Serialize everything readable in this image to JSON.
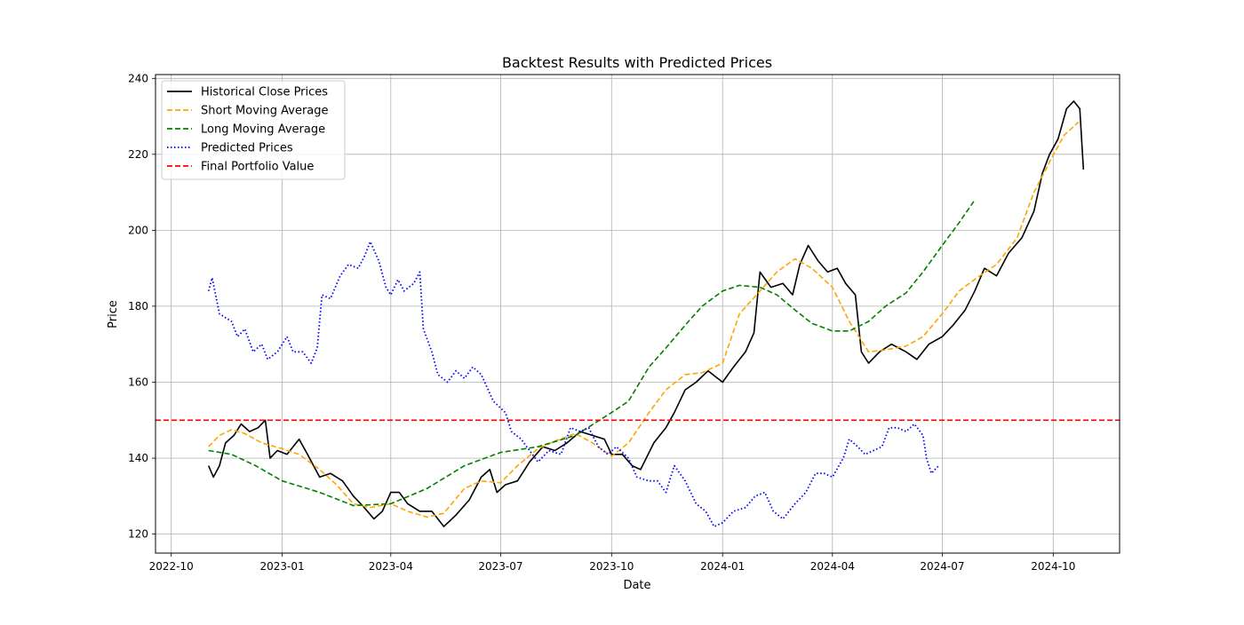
{
  "chart_data": {
    "type": "line",
    "title": "Backtest Results with Predicted Prices",
    "xlabel": "Date",
    "ylabel": "Price",
    "xlim": [
      "2022-09-18",
      "2024-11-25"
    ],
    "ylim": [
      115,
      241
    ],
    "x_ticks": [
      "2022-10",
      "2023-01",
      "2023-04",
      "2023-07",
      "2023-10",
      "2024-01",
      "2024-04",
      "2024-07",
      "2024-10"
    ],
    "y_ticks": [
      120,
      140,
      160,
      180,
      200,
      220,
      240
    ],
    "grid": true,
    "legend_position": "top-left",
    "series": [
      {
        "name": "Historical Close Prices",
        "color": "#000000",
        "style": "solid",
        "points": [
          [
            "2022-11-01",
            138
          ],
          [
            "2022-11-05",
            135
          ],
          [
            "2022-11-10",
            138
          ],
          [
            "2022-11-15",
            144
          ],
          [
            "2022-11-22",
            146
          ],
          [
            "2022-11-28",
            149
          ],
          [
            "2022-12-05",
            147
          ],
          [
            "2022-12-12",
            148
          ],
          [
            "2022-12-18",
            150
          ],
          [
            "2022-12-22",
            140
          ],
          [
            "2022-12-28",
            142
          ],
          [
            "2023-01-05",
            141
          ],
          [
            "2023-01-15",
            145
          ],
          [
            "2023-01-22",
            141
          ],
          [
            "2023-02-01",
            135
          ],
          [
            "2023-02-10",
            136
          ],
          [
            "2023-02-20",
            134
          ],
          [
            "2023-03-01",
            130
          ],
          [
            "2023-03-10",
            127
          ],
          [
            "2023-03-18",
            124
          ],
          [
            "2023-03-25",
            126
          ],
          [
            "2023-04-01",
            131
          ],
          [
            "2023-04-08",
            131
          ],
          [
            "2023-04-15",
            128
          ],
          [
            "2023-04-25",
            126
          ],
          [
            "2023-05-05",
            126
          ],
          [
            "2023-05-15",
            122
          ],
          [
            "2023-05-25",
            125
          ],
          [
            "2023-06-05",
            129
          ],
          [
            "2023-06-15",
            135
          ],
          [
            "2023-06-22",
            137
          ],
          [
            "2023-06-28",
            131
          ],
          [
            "2023-07-05",
            133
          ],
          [
            "2023-07-15",
            134
          ],
          [
            "2023-07-25",
            139
          ],
          [
            "2023-08-05",
            143
          ],
          [
            "2023-08-15",
            142
          ],
          [
            "2023-08-25",
            144
          ],
          [
            "2023-09-05",
            147
          ],
          [
            "2023-09-15",
            146
          ],
          [
            "2023-09-25",
            145
          ],
          [
            "2023-10-01",
            141
          ],
          [
            "2023-10-10",
            141
          ],
          [
            "2023-10-18",
            138
          ],
          [
            "2023-10-25",
            137
          ],
          [
            "2023-11-05",
            144
          ],
          [
            "2023-11-15",
            148
          ],
          [
            "2023-11-22",
            152
          ],
          [
            "2023-12-01",
            158
          ],
          [
            "2023-12-10",
            160
          ],
          [
            "2023-12-20",
            163
          ],
          [
            "2024-01-01",
            160
          ],
          [
            "2024-01-10",
            164
          ],
          [
            "2024-01-20",
            168
          ],
          [
            "2024-01-27",
            173
          ],
          [
            "2024-02-01",
            189
          ],
          [
            "2024-02-10",
            185
          ],
          [
            "2024-02-20",
            186
          ],
          [
            "2024-02-28",
            183
          ],
          [
            "2024-03-05",
            191
          ],
          [
            "2024-03-12",
            196
          ],
          [
            "2024-03-20",
            192
          ],
          [
            "2024-03-28",
            189
          ],
          [
            "2024-04-05",
            190
          ],
          [
            "2024-04-12",
            186
          ],
          [
            "2024-04-20",
            183
          ],
          [
            "2024-04-25",
            168
          ],
          [
            "2024-05-01",
            165
          ],
          [
            "2024-05-10",
            168
          ],
          [
            "2024-05-20",
            170
          ],
          [
            "2024-06-01",
            168
          ],
          [
            "2024-06-10",
            166
          ],
          [
            "2024-06-20",
            170
          ],
          [
            "2024-07-01",
            172
          ],
          [
            "2024-07-10",
            175
          ],
          [
            "2024-07-20",
            179
          ],
          [
            "2024-07-28",
            184
          ],
          [
            "2024-08-05",
            190
          ],
          [
            "2024-08-15",
            188
          ],
          [
            "2024-08-25",
            194
          ],
          [
            "2024-09-05",
            198
          ],
          [
            "2024-09-15",
            205
          ],
          [
            "2024-09-22",
            215
          ],
          [
            "2024-09-28",
            220
          ],
          [
            "2024-10-05",
            224
          ],
          [
            "2024-10-12",
            232
          ],
          [
            "2024-10-18",
            234
          ],
          [
            "2024-10-23",
            232
          ],
          [
            "2024-10-26",
            216
          ]
        ]
      },
      {
        "name": "Short Moving Average",
        "color": "#ffa500",
        "style": "dashed",
        "points": [
          [
            "2022-11-01",
            143
          ],
          [
            "2022-11-10",
            146
          ],
          [
            "2022-11-20",
            147.5
          ],
          [
            "2022-12-01",
            146.5
          ],
          [
            "2022-12-15",
            144
          ],
          [
            "2023-01-01",
            142.5
          ],
          [
            "2023-01-15",
            141
          ],
          [
            "2023-02-01",
            137
          ],
          [
            "2023-02-15",
            133
          ],
          [
            "2023-03-01",
            128
          ],
          [
            "2023-03-15",
            127
          ],
          [
            "2023-04-01",
            128
          ],
          [
            "2023-04-15",
            126
          ],
          [
            "2023-05-01",
            124.5
          ],
          [
            "2023-05-15",
            125.5
          ],
          [
            "2023-06-01",
            132
          ],
          [
            "2023-06-15",
            134
          ],
          [
            "2023-07-01",
            133.5
          ],
          [
            "2023-07-15",
            138
          ],
          [
            "2023-08-01",
            142.5
          ],
          [
            "2023-08-15",
            144.5
          ],
          [
            "2023-09-01",
            146.5
          ],
          [
            "2023-09-15",
            144
          ],
          [
            "2023-10-01",
            140.5
          ],
          [
            "2023-10-15",
            144
          ],
          [
            "2023-11-01",
            152
          ],
          [
            "2023-11-15",
            158
          ],
          [
            "2023-12-01",
            162
          ],
          [
            "2023-12-15",
            162.5
          ],
          [
            "2024-01-01",
            165
          ],
          [
            "2024-01-15",
            178
          ],
          [
            "2024-02-01",
            184
          ],
          [
            "2024-02-15",
            189
          ],
          [
            "2024-03-01",
            192.5
          ],
          [
            "2024-03-15",
            190
          ],
          [
            "2024-04-01",
            185
          ],
          [
            "2024-04-15",
            176
          ],
          [
            "2024-05-01",
            168
          ],
          [
            "2024-05-15",
            168.5
          ],
          [
            "2024-06-01",
            169.5
          ],
          [
            "2024-06-15",
            172
          ],
          [
            "2024-07-01",
            178
          ],
          [
            "2024-07-15",
            184
          ],
          [
            "2024-08-01",
            188
          ],
          [
            "2024-08-15",
            191
          ],
          [
            "2024-09-01",
            198
          ],
          [
            "2024-09-15",
            210
          ],
          [
            "2024-09-28",
            218
          ],
          [
            "2024-10-10",
            225
          ],
          [
            "2024-10-22",
            228.5
          ]
        ]
      },
      {
        "name": "Long Moving Average",
        "color": "#008000",
        "style": "dashed",
        "points": [
          [
            "2022-11-01",
            142
          ],
          [
            "2022-11-20",
            141
          ],
          [
            "2022-12-10",
            138
          ],
          [
            "2023-01-01",
            134
          ],
          [
            "2023-02-01",
            131
          ],
          [
            "2023-03-01",
            127.5
          ],
          [
            "2023-04-01",
            128
          ],
          [
            "2023-05-01",
            132
          ],
          [
            "2023-06-01",
            138
          ],
          [
            "2023-07-01",
            141.5
          ],
          [
            "2023-08-01",
            143
          ],
          [
            "2023-09-01",
            146
          ],
          [
            "2023-10-01",
            152
          ],
          [
            "2023-10-15",
            155
          ],
          [
            "2023-11-01",
            164
          ],
          [
            "2023-11-15",
            169
          ],
          [
            "2023-12-01",
            175
          ],
          [
            "2023-12-15",
            180
          ],
          [
            "2024-01-01",
            184
          ],
          [
            "2024-01-15",
            185.5
          ],
          [
            "2024-02-01",
            185
          ],
          [
            "2024-02-15",
            183
          ],
          [
            "2024-03-01",
            179
          ],
          [
            "2024-03-15",
            175.5
          ],
          [
            "2024-04-01",
            173.5
          ],
          [
            "2024-04-15",
            173.5
          ],
          [
            "2024-05-01",
            176
          ],
          [
            "2024-05-15",
            180
          ],
          [
            "2024-06-01",
            183.5
          ],
          [
            "2024-06-15",
            189
          ],
          [
            "2024-07-01",
            196
          ],
          [
            "2024-07-15",
            202
          ],
          [
            "2024-07-28",
            208
          ]
        ]
      },
      {
        "name": "Predicted Prices",
        "color": "#0000ff",
        "style": "dotted",
        "points": [
          [
            "2022-11-01",
            184
          ],
          [
            "2022-11-04",
            187.5
          ],
          [
            "2022-11-10",
            178
          ],
          [
            "2022-11-20",
            176
          ],
          [
            "2022-11-25",
            172
          ],
          [
            "2022-12-01",
            174
          ],
          [
            "2022-12-08",
            168
          ],
          [
            "2022-12-15",
            170
          ],
          [
            "2022-12-20",
            166
          ],
          [
            "2022-12-28",
            168
          ],
          [
            "2023-01-05",
            172
          ],
          [
            "2023-01-10",
            168
          ],
          [
            "2023-01-18",
            168
          ],
          [
            "2023-01-25",
            165
          ],
          [
            "2023-01-30",
            169
          ],
          [
            "2023-02-03",
            183
          ],
          [
            "2023-02-10",
            182
          ],
          [
            "2023-02-18",
            188
          ],
          [
            "2023-02-25",
            191
          ],
          [
            "2023-03-05",
            190
          ],
          [
            "2023-03-10",
            193
          ],
          [
            "2023-03-15",
            197
          ],
          [
            "2023-03-22",
            192
          ],
          [
            "2023-03-28",
            185
          ],
          [
            "2023-04-01",
            183
          ],
          [
            "2023-04-07",
            187
          ],
          [
            "2023-04-12",
            184
          ],
          [
            "2023-04-20",
            186
          ],
          [
            "2023-04-25",
            189
          ],
          [
            "2023-04-28",
            174
          ],
          [
            "2023-05-05",
            168
          ],
          [
            "2023-05-10",
            162
          ],
          [
            "2023-05-18",
            160
          ],
          [
            "2023-05-25",
            163
          ],
          [
            "2023-06-01",
            161
          ],
          [
            "2023-06-08",
            164
          ],
          [
            "2023-06-15",
            162
          ],
          [
            "2023-06-25",
            155
          ],
          [
            "2023-07-05",
            152
          ],
          [
            "2023-07-10",
            147
          ],
          [
            "2023-07-18",
            145
          ],
          [
            "2023-07-25",
            142
          ],
          [
            "2023-08-01",
            139
          ],
          [
            "2023-08-10",
            142
          ],
          [
            "2023-08-20",
            141
          ],
          [
            "2023-08-28",
            148
          ],
          [
            "2023-09-05",
            147
          ],
          [
            "2023-09-12",
            148
          ],
          [
            "2023-09-20",
            143
          ],
          [
            "2023-09-28",
            141
          ],
          [
            "2023-10-05",
            143
          ],
          [
            "2023-10-15",
            140
          ],
          [
            "2023-10-22",
            135
          ],
          [
            "2023-11-01",
            134
          ],
          [
            "2023-11-08",
            134
          ],
          [
            "2023-11-15",
            131
          ],
          [
            "2023-11-22",
            138
          ],
          [
            "2023-12-01",
            134
          ],
          [
            "2023-12-10",
            128
          ],
          [
            "2023-12-18",
            126
          ],
          [
            "2023-12-25",
            122
          ],
          [
            "2024-01-01",
            123
          ],
          [
            "2024-01-10",
            126
          ],
          [
            "2024-01-20",
            127
          ],
          [
            "2024-01-28",
            130
          ],
          [
            "2024-02-05",
            131
          ],
          [
            "2024-02-12",
            126
          ],
          [
            "2024-02-20",
            124
          ],
          [
            "2024-03-01",
            128
          ],
          [
            "2024-03-10",
            131
          ],
          [
            "2024-03-18",
            136
          ],
          [
            "2024-03-25",
            136
          ],
          [
            "2024-04-01",
            135
          ],
          [
            "2024-04-10",
            140
          ],
          [
            "2024-04-15",
            145
          ],
          [
            "2024-04-22",
            143
          ],
          [
            "2024-04-28",
            141
          ],
          [
            "2024-05-05",
            142
          ],
          [
            "2024-05-12",
            143
          ],
          [
            "2024-05-18",
            148
          ],
          [
            "2024-05-25",
            148
          ],
          [
            "2024-06-01",
            147
          ],
          [
            "2024-06-08",
            149
          ],
          [
            "2024-06-15",
            146
          ],
          [
            "2024-06-18",
            140
          ],
          [
            "2024-06-22",
            136
          ],
          [
            "2024-06-28",
            138
          ]
        ]
      },
      {
        "name": "Final Portfolio Value",
        "color": "#ff0000",
        "style": "dashed",
        "hline": 150
      }
    ]
  }
}
